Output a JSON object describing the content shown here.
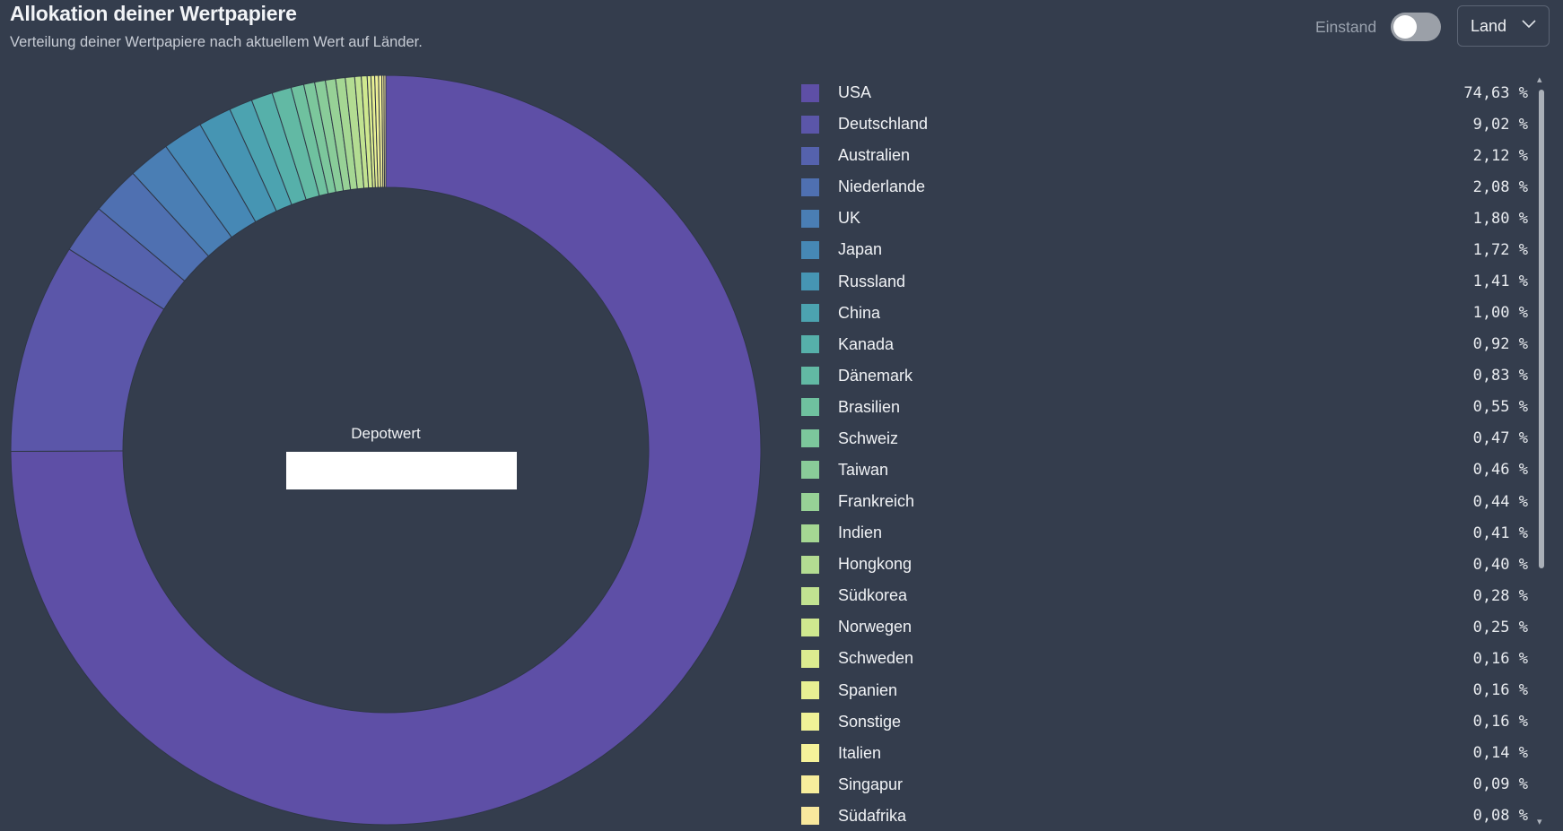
{
  "header": {
    "title": "Allokation deiner Wertpapiere",
    "subtitle": "Verteilung deiner Wertpapiere nach aktuellem Wert auf Länder."
  },
  "controls": {
    "toggle_label": "Einstand",
    "toggle_on": false,
    "select_value": "Land",
    "select_icon": "chevron-down-icon"
  },
  "center": {
    "label": "Depotwert"
  },
  "chart_data": {
    "type": "pie",
    "style": "donut",
    "categories": [
      "USA",
      "Deutschland",
      "Australien",
      "Niederlande",
      "UK",
      "Japan",
      "Russland",
      "China",
      "Kanada",
      "Dänemark",
      "Brasilien",
      "Schweiz",
      "Taiwan",
      "Frankreich",
      "Indien",
      "Hongkong",
      "Südkorea",
      "Norwegen",
      "Schweden",
      "Spanien",
      "Sonstige",
      "Italien",
      "Singapur",
      "Südafrika"
    ],
    "values": [
      74.63,
      9.02,
      2.12,
      2.08,
      1.8,
      1.72,
      1.41,
      1.0,
      0.92,
      0.83,
      0.55,
      0.47,
      0.46,
      0.44,
      0.41,
      0.4,
      0.28,
      0.25,
      0.16,
      0.16,
      0.16,
      0.14,
      0.09,
      0.08
    ],
    "labels": [
      "74,63 %",
      "9,02 %",
      "2,12 %",
      "2,08 %",
      "1,80 %",
      "1,72 %",
      "1,41 %",
      "1,00 %",
      "0,92 %",
      "0,83 %",
      "0,55 %",
      "0,47 %",
      "0,46 %",
      "0,44 %",
      "0,41 %",
      "0,40 %",
      "0,28 %",
      "0,25 %",
      "0,16 %",
      "0,16 %",
      "0,16 %",
      "0,14 %",
      "0,09 %",
      "0,08 %"
    ],
    "colors": [
      "#5e4fa6",
      "#5b56a9",
      "#5562ad",
      "#4f70b1",
      "#4a7eb4",
      "#4688b5",
      "#4695b3",
      "#4ca3b0",
      "#56b0aa",
      "#62b9a4",
      "#6fc19f",
      "#7cc79c",
      "#89cc99",
      "#97d196",
      "#a5d793",
      "#b3dc92",
      "#c1e291",
      "#cfe88f",
      "#dcec90",
      "#e8f093",
      "#f0f297",
      "#f5f29a",
      "#f7ee9c",
      "#f8e89d"
    ],
    "legend_placement": "right"
  },
  "scrollbar": {
    "up_icon": "▴",
    "down_icon": "▾"
  }
}
